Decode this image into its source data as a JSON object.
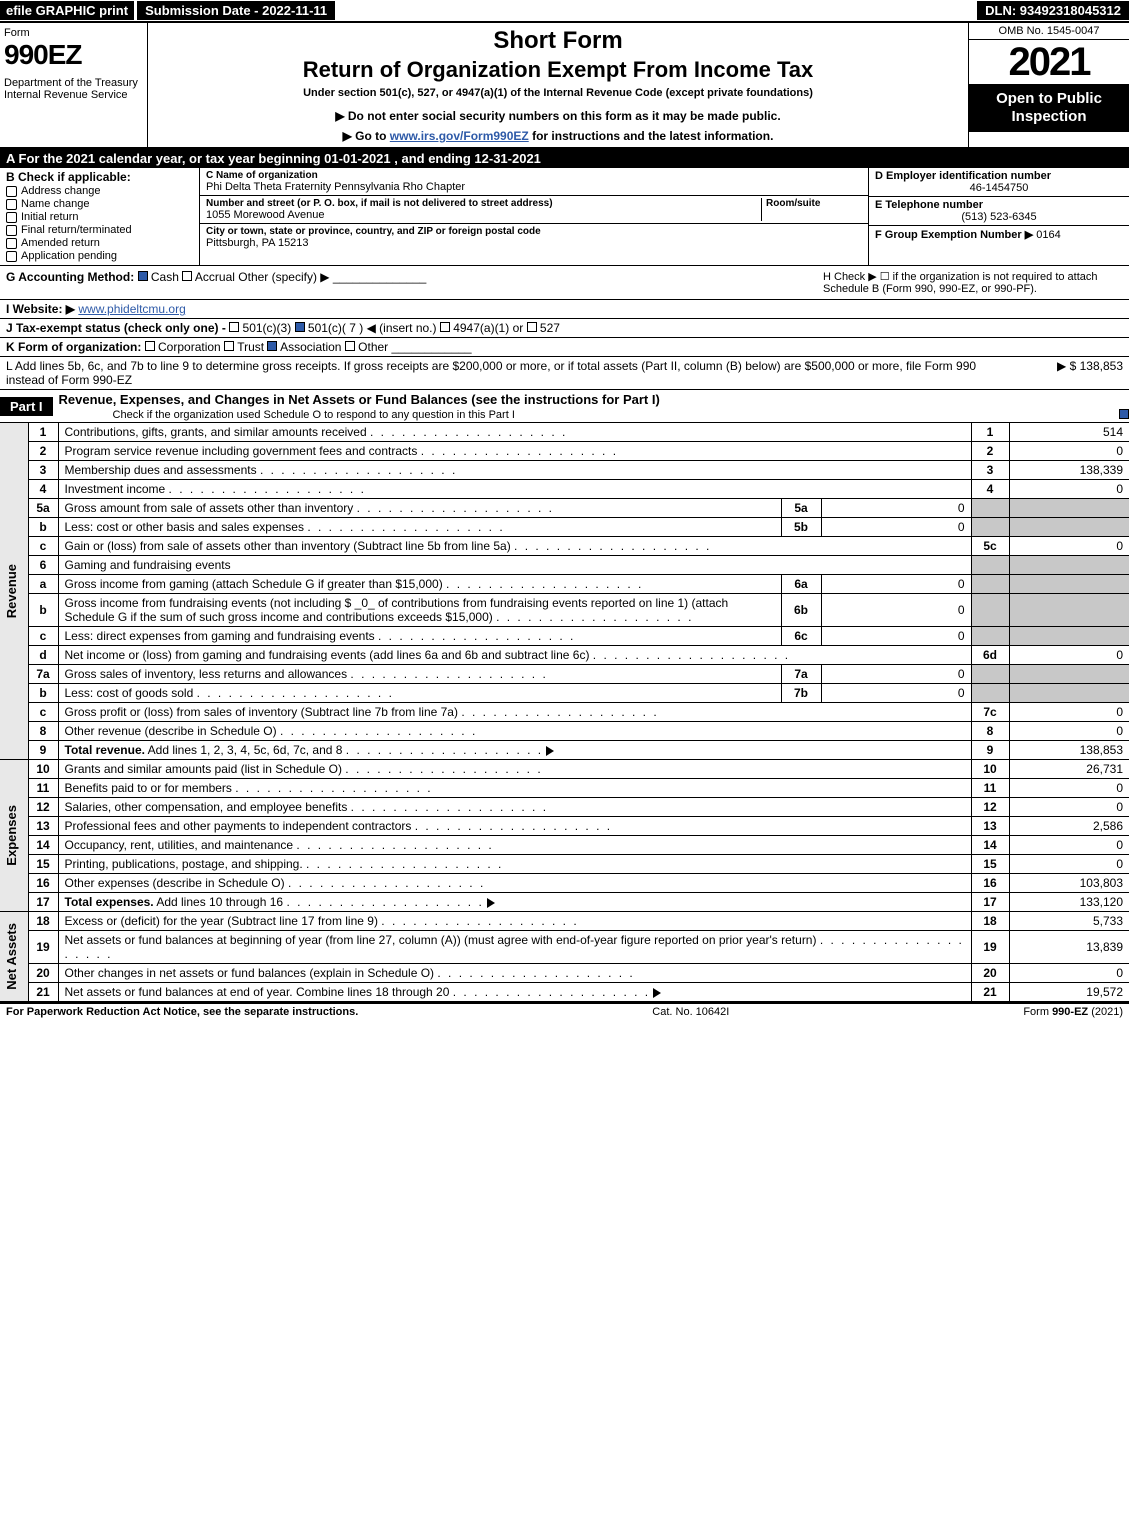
{
  "top": {
    "efile": "efile GRAPHIC print",
    "submission": "Submission Date - 2022-11-11",
    "dln": "DLN: 93492318045312"
  },
  "header": {
    "form_word": "Form",
    "form_num": "990EZ",
    "dept": "Department of the Treasury\nInternal Revenue Service",
    "short_form": "Short Form",
    "return_of": "Return of Organization Exempt From Income Tax",
    "under": "Under section 501(c), 527, or 4947(a)(1) of the Internal Revenue Code (except private foundations)",
    "do_not": "▶ Do not enter social security numbers on this form as it may be made public.",
    "goto_pre": "▶ Go to ",
    "goto_link": "www.irs.gov/Form990EZ",
    "goto_post": " for instructions and the latest information.",
    "omb": "OMB No. 1545-0047",
    "year": "2021",
    "open": "Open to Public Inspection"
  },
  "lineA": "A  For the 2021 calendar year, or tax year beginning 01-01-2021 , and ending 12-31-2021",
  "B": {
    "hdr": "B  Check if applicable:",
    "opts": [
      "Address change",
      "Name change",
      "Initial return",
      "Final return/terminated",
      "Amended return",
      "Application pending"
    ]
  },
  "C": {
    "label": "C Name of organization",
    "val": "Phi Delta Theta Fraternity Pennsylvania Rho Chapter",
    "addr_label": "Number and street (or P. O. box, if mail is not delivered to street address)",
    "room_label": "Room/suite",
    "addr": "1055 Morewood Avenue",
    "city_label": "City or town, state or province, country, and ZIP or foreign postal code",
    "city": "Pittsburgh, PA  15213"
  },
  "D": {
    "label": "D Employer identification number",
    "val": "46-1454750"
  },
  "E": {
    "label": "E Telephone number",
    "val": "(513) 523-6345"
  },
  "F": {
    "label": "F Group Exemption Number  ▶",
    "val": "0164"
  },
  "G": {
    "label": "G Accounting Method:",
    "cash": "Cash",
    "accrual": "Accrual",
    "other": "Other (specify) ▶"
  },
  "H": {
    "text": "H  Check ▶ ☐ if the organization is not required to attach Schedule B (Form 990, 990-EZ, or 990-PF)."
  },
  "I": {
    "label": "I Website: ▶",
    "val": "www.phideltcmu.org"
  },
  "J": {
    "label": "J Tax-exempt status (check only one) -",
    "opt1": "501(c)(3)",
    "opt2": "501(c)( 7 ) ◀ (insert no.)",
    "opt3": "4947(a)(1) or",
    "opt4": "527"
  },
  "K": {
    "label": "K Form of organization:",
    "opts": [
      "Corporation",
      "Trust",
      "Association",
      "Other"
    ]
  },
  "L": {
    "text": "L Add lines 5b, 6c, and 7b to line 9 to determine gross receipts. If gross receipts are $200,000 or more, or if total assets (Part II, column (B) below) are $500,000 or more, file Form 990 instead of Form 990-EZ",
    "amt": "▶ $ 138,853"
  },
  "part1": {
    "hdr": "Part I",
    "title": "Revenue, Expenses, and Changes in Net Assets or Fund Balances (see the instructions for Part I)",
    "sub": "Check if the organization used Schedule O to respond to any question in this Part I"
  },
  "sections": {
    "rev": "Revenue",
    "exp": "Expenses",
    "na": "Net Assets"
  },
  "rows": [
    {
      "n": "1",
      "d": "Contributions, gifts, grants, and similar amounts received",
      "box": "1",
      "amt": "514"
    },
    {
      "n": "2",
      "d": "Program service revenue including government fees and contracts",
      "box": "2",
      "amt": "0"
    },
    {
      "n": "3",
      "d": "Membership dues and assessments",
      "box": "3",
      "amt": "138,339"
    },
    {
      "n": "4",
      "d": "Investment income",
      "box": "4",
      "amt": "0"
    },
    {
      "n": "5a",
      "d": "Gross amount from sale of assets other than inventory",
      "sb": "5a",
      "sa": "0"
    },
    {
      "n": "b",
      "d": "Less: cost or other basis and sales expenses",
      "sb": "5b",
      "sa": "0"
    },
    {
      "n": "c",
      "d": "Gain or (loss) from sale of assets other than inventory (Subtract line 5b from line 5a)",
      "box": "5c",
      "amt": "0"
    },
    {
      "n": "6",
      "d": "Gaming and fundraising events",
      "shade": true
    },
    {
      "n": "a",
      "d": "Gross income from gaming (attach Schedule G if greater than $15,000)",
      "sb": "6a",
      "sa": "0"
    },
    {
      "n": "b",
      "d": "Gross income from fundraising events (not including $ _0_ of contributions from fundraising events reported on line 1) (attach Schedule G if the sum of such gross income and contributions exceeds $15,000)",
      "sb": "6b",
      "sa": "0"
    },
    {
      "n": "c",
      "d": "Less: direct expenses from gaming and fundraising events",
      "sb": "6c",
      "sa": "0"
    },
    {
      "n": "d",
      "d": "Net income or (loss) from gaming and fundraising events (add lines 6a and 6b and subtract line 6c)",
      "box": "6d",
      "amt": "0"
    },
    {
      "n": "7a",
      "d": "Gross sales of inventory, less returns and allowances",
      "sb": "7a",
      "sa": "0"
    },
    {
      "n": "b",
      "d": "Less: cost of goods sold",
      "sb": "7b",
      "sa": "0"
    },
    {
      "n": "c",
      "d": "Gross profit or (loss) from sales of inventory (Subtract line 7b from line 7a)",
      "box": "7c",
      "amt": "0"
    },
    {
      "n": "8",
      "d": "Other revenue (describe in Schedule O)",
      "box": "8",
      "amt": "0"
    },
    {
      "n": "9",
      "d": "Total revenue. Add lines 1, 2, 3, 4, 5c, 6d, 7c, and 8",
      "box": "9",
      "amt": "138,853",
      "bold": true,
      "arrow": true
    }
  ],
  "exp_rows": [
    {
      "n": "10",
      "d": "Grants and similar amounts paid (list in Schedule O)",
      "box": "10",
      "amt": "26,731"
    },
    {
      "n": "11",
      "d": "Benefits paid to or for members",
      "box": "11",
      "amt": "0"
    },
    {
      "n": "12",
      "d": "Salaries, other compensation, and employee benefits",
      "box": "12",
      "amt": "0"
    },
    {
      "n": "13",
      "d": "Professional fees and other payments to independent contractors",
      "box": "13",
      "amt": "2,586"
    },
    {
      "n": "14",
      "d": "Occupancy, rent, utilities, and maintenance",
      "box": "14",
      "amt": "0"
    },
    {
      "n": "15",
      "d": "Printing, publications, postage, and shipping.",
      "box": "15",
      "amt": "0"
    },
    {
      "n": "16",
      "d": "Other expenses (describe in Schedule O)",
      "box": "16",
      "amt": "103,803"
    },
    {
      "n": "17",
      "d": "Total expenses. Add lines 10 through 16",
      "box": "17",
      "amt": "133,120",
      "bold": true,
      "arrow": true
    }
  ],
  "na_rows": [
    {
      "n": "18",
      "d": "Excess or (deficit) for the year (Subtract line 17 from line 9)",
      "box": "18",
      "amt": "5,733"
    },
    {
      "n": "19",
      "d": "Net assets or fund balances at beginning of year (from line 27, column (A)) (must agree with end-of-year figure reported on prior year's return)",
      "box": "19",
      "amt": "13,839"
    },
    {
      "n": "20",
      "d": "Other changes in net assets or fund balances (explain in Schedule O)",
      "box": "20",
      "amt": "0"
    },
    {
      "n": "21",
      "d": "Net assets or fund balances at end of year. Combine lines 18 through 20",
      "box": "21",
      "amt": "19,572",
      "arrow": true
    }
  ],
  "footer": {
    "left": "For Paperwork Reduction Act Notice, see the separate instructions.",
    "mid": "Cat. No. 10642I",
    "right_pre": "Form ",
    "right_bold": "990-EZ",
    "right_post": " (2021)"
  }
}
